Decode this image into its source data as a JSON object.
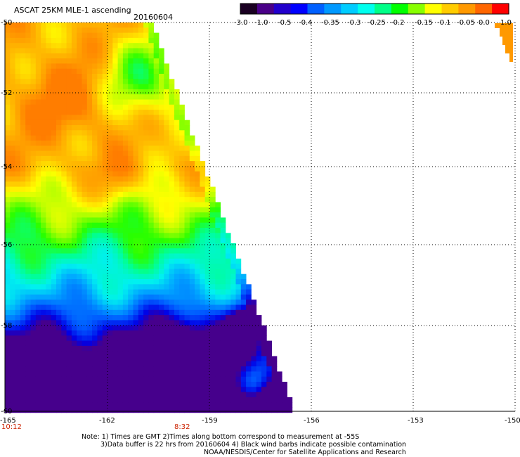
{
  "header": {
    "title": "ASCAT 25KM MLE-1 ascending",
    "date": "20160604"
  },
  "colorbar": {
    "labels": [
      "-3.0",
      "-1.0",
      "-0.5",
      "-0.4",
      "-0.35",
      "-0.3",
      "-0.25",
      "-0.2",
      "-0.15",
      "-0.1",
      "-0.05",
      "0.0",
      "1.0"
    ],
    "colors": [
      "#1a0022",
      "#4a0088",
      "#2200cc",
      "#0000ff",
      "#0060ff",
      "#0099ff",
      "#00ccff",
      "#00ffee",
      "#00ff88",
      "#00ff00",
      "#88ff00",
      "#ffff00",
      "#ffcc00",
      "#ff9900",
      "#ff6600",
      "#ff0000"
    ]
  },
  "map": {
    "lat_labels": [
      "-50",
      "-52",
      "-54",
      "-56",
      "-58",
      "-60"
    ],
    "lon_labels": [
      "-165",
      "-162",
      "-159",
      "-156",
      "-153",
      "-150"
    ],
    "time_labels": [
      "10:12",
      "8:32"
    ]
  },
  "notes": {
    "line1": "Note: 1) Times are GMT 2)Times along bottom correspond to measurement at -55S",
    "line2": "3)Data buffer is 22 hrs from 20160604 4) Black wind barbs indicate possible contamination",
    "line3": "NOAA/NESDIS/Center for Satellite Applications and Research"
  }
}
